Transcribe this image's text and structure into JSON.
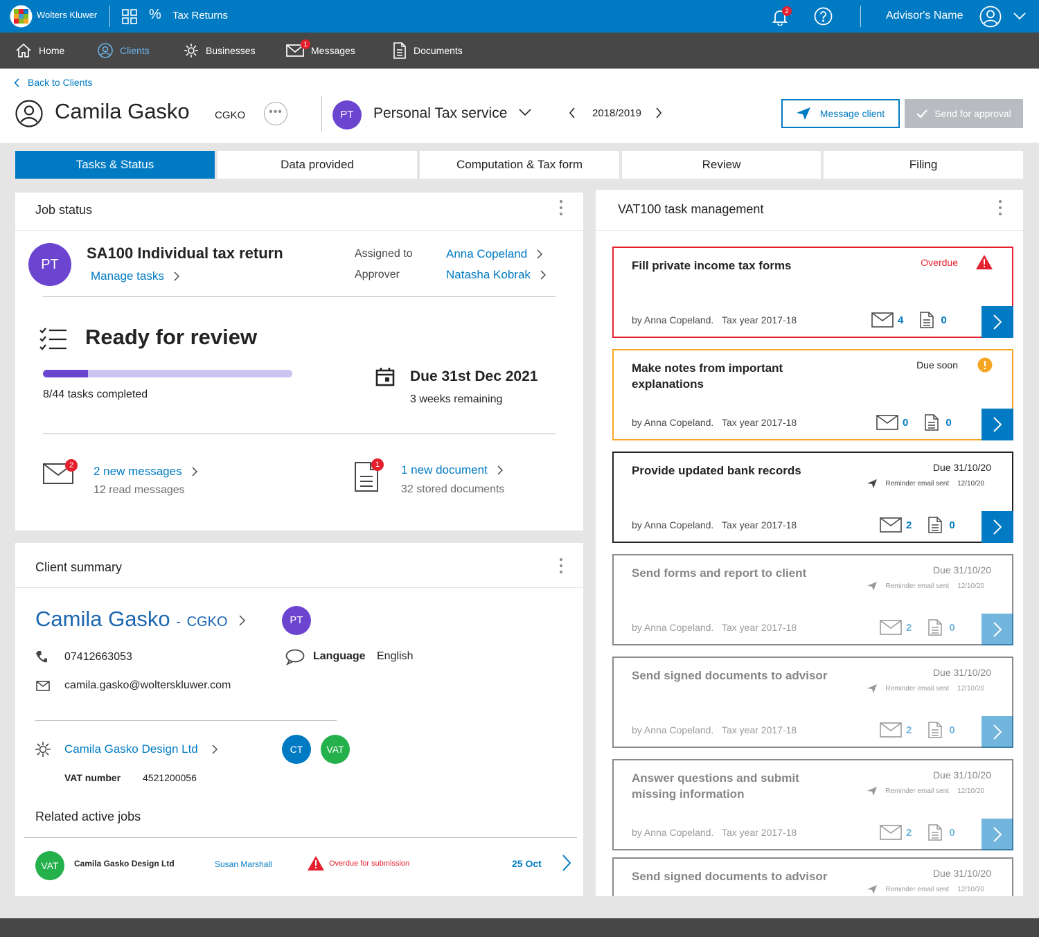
{
  "topbar": {
    "brand": "Wolters Kluwer",
    "app_title": "Tax Returns",
    "percent_glyph": "%",
    "notification_count": "2",
    "user_name": "Advisor's Name",
    "icons": [
      "logo-icon",
      "app-grid-icon",
      "bell-icon",
      "help-icon",
      "user-avatar-icon",
      "chevron-down-icon"
    ]
  },
  "nav": {
    "items": [
      {
        "label": "Home",
        "icon": "home-icon"
      },
      {
        "label": "Clients",
        "icon": "client-icon",
        "active": true
      },
      {
        "label": "Businesses",
        "icon": "business-icon"
      },
      {
        "label": "Messages",
        "icon": "envelope-icon",
        "badge": "1"
      },
      {
        "label": "Documents",
        "icon": "document-icon"
      }
    ]
  },
  "header": {
    "back_label": "Back to Clients",
    "client_name": "Camila Gasko",
    "client_code": "CGKO",
    "more_glyph": "•••",
    "service_initials": "PT",
    "service_name": "Personal Tax service",
    "tax_year": "2018/2019",
    "message_button": "Message client",
    "approval_button": "Send for approval"
  },
  "tabs": [
    "Tasks & Status",
    "Data provided",
    "Computation & Tax form",
    "Review",
    "Filing"
  ],
  "job_status": {
    "title": "Job status",
    "initials": "PT",
    "job_name": "SA100 Individual tax return",
    "manage_tasks": "Manage tasks",
    "assigned_label": "Assigned to",
    "assigned_name": "Anna Copeland",
    "approver_label": "Approver",
    "approver_name": "Natasha Kobrak",
    "status": "Ready for review",
    "progress": {
      "completed": 8,
      "total": 44,
      "fraction": 0.18
    },
    "tasks_completed": "8/44 tasks completed",
    "due": "Due 31st Dec 2021",
    "remaining": "3 weeks remaining",
    "messages_badge": "2",
    "new_messages": "2 new messages",
    "read_messages": "12 read messages",
    "documents_badge": "1",
    "new_document": "1 new document",
    "stored_documents": "32 stored documents"
  },
  "client_summary": {
    "title": "Client summary",
    "name": "Camila Gasko",
    "separator": "-",
    "code": "CGKO",
    "initials": "PT",
    "phone": "07412663053",
    "language_label": "Language",
    "language": "English",
    "email": "camila.gasko@wolterskluwer.com",
    "business": "Camila Gasko Design Ltd",
    "business_badges": [
      "CT",
      "VAT"
    ],
    "vat_label": "VAT number",
    "vat_number": "4521200056",
    "related_title": "Related active jobs",
    "related_job": {
      "badge": "VAT",
      "company": "Camila Gasko Design Ltd",
      "person": "Susan Marshall",
      "status": "Overdue for submission",
      "date": "25 Oct"
    }
  },
  "vat100": {
    "title": "VAT100 task management",
    "colors": {
      "overdue": "#e5202e",
      "due_soon": "#f5a623",
      "accent": "#007ac3"
    },
    "tasks": [
      {
        "title": "Fill private income tax forms",
        "status": "Overdue",
        "reminder": "",
        "reminder_date": "",
        "by": "by Anna Copeland.",
        "year": "Tax year 2017-18",
        "messages": "4",
        "documents": "0",
        "state": "overdue"
      },
      {
        "title": "Make notes from important explanations",
        "status": "Due soon",
        "reminder": "",
        "reminder_date": "",
        "by": "by Anna Copeland.",
        "year": "Tax year 2017-18",
        "messages": "0",
        "documents": "0",
        "state": "soon"
      },
      {
        "title": "Provide updated bank records",
        "status": "Due 31/10/20",
        "reminder": "Reminder email sent",
        "reminder_date": "12/10/20",
        "by": "by Anna Copeland.",
        "year": "Tax year 2017-18",
        "messages": "2",
        "documents": "0",
        "state": "normal"
      },
      {
        "title": "Send forms and report to client",
        "status": "Due 31/10/20",
        "reminder": "Reminder email sent",
        "reminder_date": "12/10/20",
        "by": "by Anna Copeland.",
        "year": "Tax year 2017-18",
        "messages": "2",
        "documents": "0",
        "state": "faded"
      },
      {
        "title": "Send signed documents to advisor",
        "status": "Due 31/10/20",
        "reminder": "Reminder email sent",
        "reminder_date": "12/10/20",
        "by": "by Anna Copeland.",
        "year": "Tax year 2017-18",
        "messages": "2",
        "documents": "0",
        "state": "faded"
      },
      {
        "title": "Answer questions and submit missing information",
        "status": "Due 31/10/20",
        "reminder": "Reminder email sent",
        "reminder_date": "12/10/20",
        "by": "by Anna Copeland.",
        "year": "Tax year 2017-18",
        "messages": "2",
        "documents": "0",
        "state": "faded"
      },
      {
        "title": "Send signed documents to advisor",
        "status": "Due 31/10/20",
        "reminder": "Reminder email sent",
        "reminder_date": "12/10/20",
        "by": "",
        "year": "",
        "messages": "",
        "documents": "",
        "state": "faded"
      }
    ]
  }
}
